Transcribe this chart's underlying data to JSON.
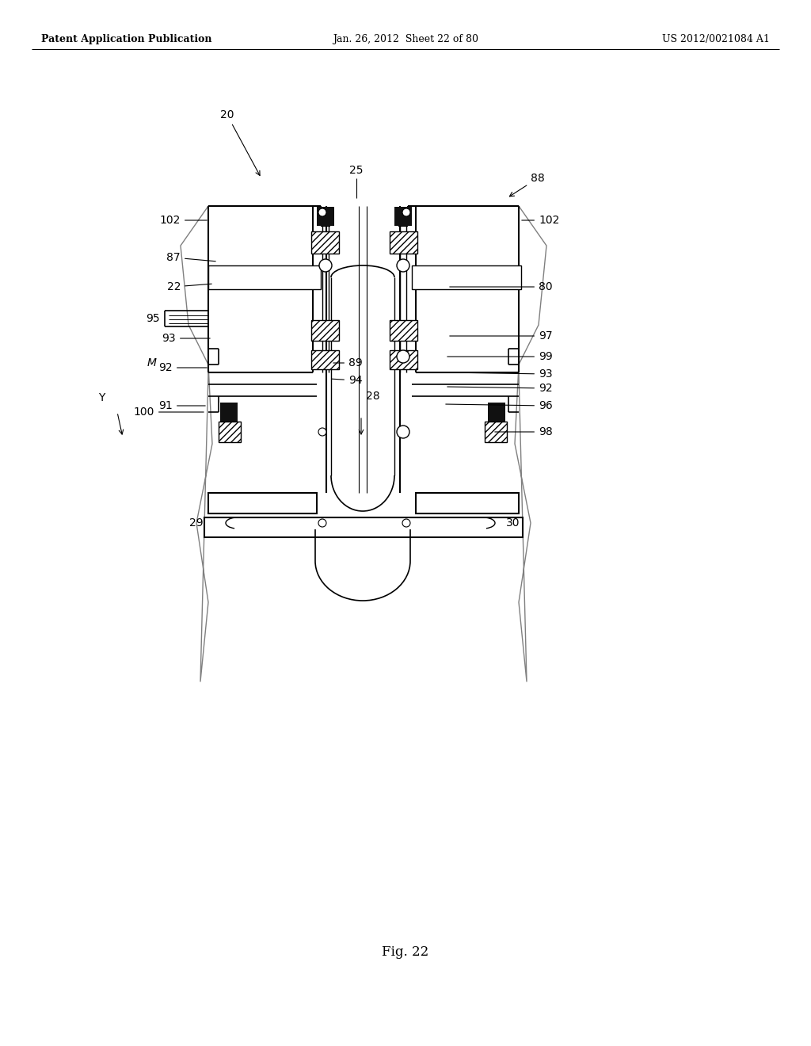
{
  "header_left": "Patent Application Publication",
  "header_mid": "Jan. 26, 2012  Sheet 22 of 80",
  "header_right": "US 2012/0021084 A1",
  "figure_label": "Fig. 22",
  "bg_color": "#ffffff"
}
